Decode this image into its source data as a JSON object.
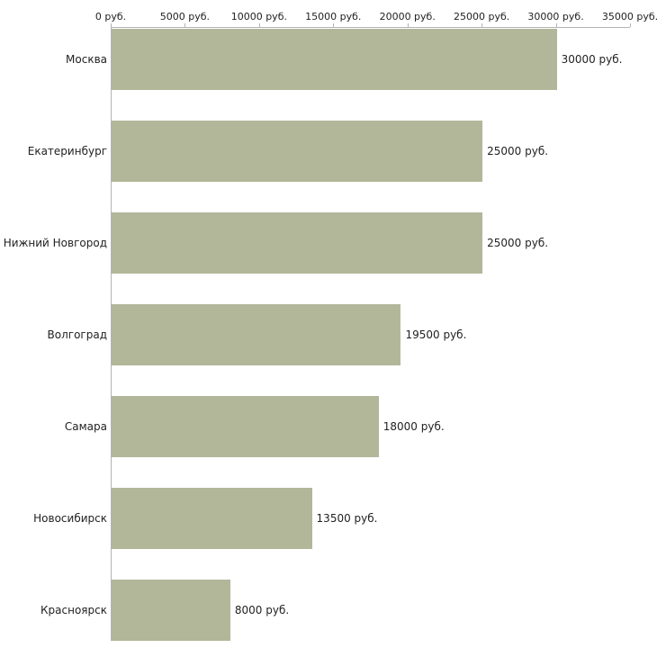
{
  "chart_data": {
    "type": "bar",
    "orientation": "horizontal",
    "title": "",
    "categories": [
      "Москва",
      "Екатеринбург",
      "Нижний Новгород",
      "Волгоград",
      "Самара",
      "Новосибирск",
      "Красноярск"
    ],
    "values": [
      30000,
      25000,
      25000,
      19500,
      18000,
      13500,
      8000
    ],
    "bar_labels": [
      "30000 руб.",
      "25000 руб.",
      "25000 руб.",
      "19500 руб.",
      "18000 руб.",
      "13500 руб.",
      "8000 руб."
    ],
    "x_axis": {
      "min": 0,
      "max": 35000,
      "position": "top",
      "ticks": [
        0,
        5000,
        10000,
        15000,
        20000,
        25000,
        30000,
        35000
      ],
      "tick_labels": [
        "0 руб.",
        "5000 руб.",
        "10000 руб.",
        "15000 руб.",
        "20000 руб.",
        "25000 руб.",
        "30000 руб.",
        "35000 руб."
      ]
    },
    "style": {
      "bar_color": "#b2b79a",
      "axis_line_color": "#b3b3b3",
      "text_color": "#222222",
      "grid": false,
      "legend": false
    }
  }
}
